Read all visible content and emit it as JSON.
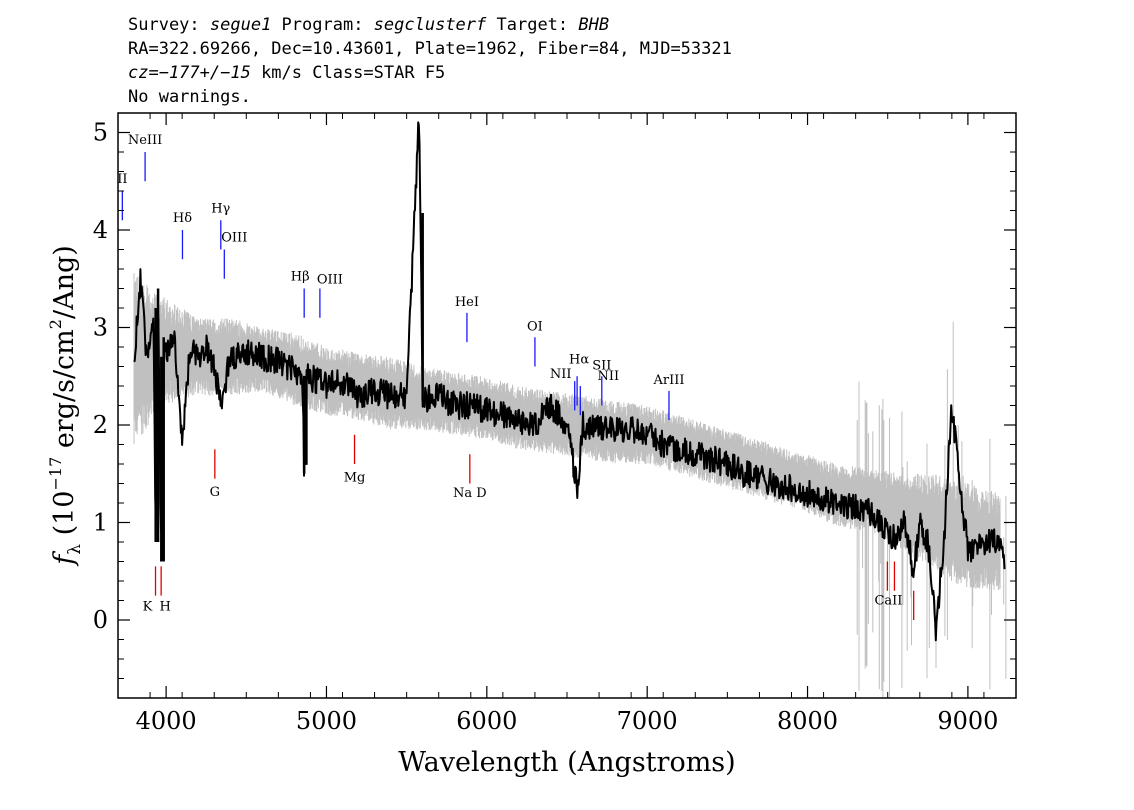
{
  "header": {
    "line1": {
      "p1": "Survey: ",
      "survey": "segue1",
      "p2": " Program: ",
      "program": "segclusterf",
      "p3": " Target: ",
      "target": "BHB"
    },
    "line2": "RA=322.69266, Dec=10.43601, Plate=1962, Fiber=84, MJD=53321",
    "line3": {
      "cz": "cz=−177+/−15",
      "rest": " km/s Class=STAR F5"
    },
    "line4": "No warnings."
  },
  "chart_data": {
    "type": "line",
    "xlabel": "Wavelength (Angstroms)",
    "ylabel_parts": {
      "f": "f",
      "sub": "λ",
      "a": " (10",
      "exp1": "−17",
      "b": " erg/s/cm",
      "exp2": "2",
      "c": "/Ang)"
    },
    "xlim": [
      3700,
      9300
    ],
    "ylim": [
      -0.8,
      5.2
    ],
    "x_ticks": [
      4000,
      5000,
      6000,
      7000,
      8000,
      9000
    ],
    "y_ticks": [
      0,
      1,
      2,
      3,
      4,
      5
    ],
    "grid": false,
    "series": [
      {
        "style": "flux-black",
        "x": [
          3800,
          3840,
          3880,
          3920,
          3935,
          3950,
          3970,
          3985,
          4000,
          4050,
          4101,
          4150,
          4200,
          4250,
          4300,
          4340,
          4400,
          4500,
          4600,
          4700,
          4800,
          4850,
          4861,
          4875,
          4950,
          5000,
          5100,
          5200,
          5300,
          5400,
          5500,
          5577,
          5600,
          5700,
          5800,
          5900,
          6000,
          6100,
          6200,
          6300,
          6400,
          6500,
          6563,
          6600,
          6700,
          6800,
          6900,
          7000,
          7100,
          7200,
          7300,
          7400,
          7500,
          7600,
          7700,
          7800,
          7900,
          8000,
          8100,
          8200,
          8300,
          8400,
          8498,
          8542,
          8600,
          8662,
          8700,
          8750,
          8800,
          8850,
          8900,
          9000,
          9100,
          9200,
          9230
        ],
        "y": [
          2.7,
          3.5,
          2.6,
          3.2,
          0.8,
          3.4,
          0.6,
          2.9,
          2.7,
          2.9,
          1.8,
          2.8,
          2.7,
          2.8,
          2.6,
          2.2,
          2.7,
          2.75,
          2.7,
          2.65,
          2.55,
          2.5,
          1.5,
          2.5,
          2.45,
          2.4,
          2.45,
          2.3,
          2.35,
          2.3,
          2.3,
          5.2,
          2.25,
          2.3,
          2.2,
          2.2,
          2.15,
          2.1,
          2.05,
          2.0,
          2.2,
          2.0,
          1.35,
          2.0,
          1.95,
          1.95,
          1.95,
          1.9,
          1.8,
          1.75,
          1.7,
          1.65,
          1.6,
          1.5,
          1.45,
          1.4,
          1.35,
          1.3,
          1.25,
          1.2,
          1.15,
          1.1,
          0.9,
          0.85,
          1.0,
          0.5,
          1.0,
          0.8,
          -0.1,
          0.8,
          2.2,
          0.7,
          0.8,
          0.8,
          0.5
        ]
      },
      {
        "style": "noise-gray",
        "x": [
          3800,
          3900,
          4000,
          4200,
          4400,
          4600,
          4800,
          5000,
          5200,
          5400,
          5600,
          5800,
          6000,
          6200,
          6400,
          6600,
          6800,
          7000,
          7200,
          7400,
          7600,
          7800,
          8000,
          8200,
          8400,
          8600,
          8800,
          9000,
          9200
        ],
        "y_upper": [
          3.6,
          3.4,
          3.3,
          3.1,
          3.1,
          3.0,
          2.95,
          2.8,
          2.75,
          2.7,
          2.6,
          2.55,
          2.5,
          2.4,
          2.35,
          2.3,
          2.25,
          2.2,
          2.1,
          2.0,
          1.9,
          1.8,
          1.7,
          1.6,
          1.55,
          1.5,
          1.5,
          1.4,
          1.3
        ],
        "y_lower": [
          1.8,
          2.0,
          2.2,
          2.3,
          2.3,
          2.35,
          2.2,
          2.1,
          2.05,
          1.95,
          1.95,
          1.9,
          1.85,
          1.75,
          1.7,
          1.65,
          1.6,
          1.6,
          1.5,
          1.4,
          1.3,
          1.2,
          1.1,
          0.95,
          0.9,
          0.7,
          0.5,
          0.3,
          0.3
        ]
      }
    ],
    "emission_lines": [
      {
        "label": "II",
        "x": 3727,
        "y1": 4.1,
        "y2": 4.4,
        "ly": 4.48,
        "dx": 0
      },
      {
        "label": "NeIII",
        "x": 3869,
        "y1": 4.5,
        "y2": 4.8,
        "ly": 4.88,
        "dx": 0
      },
      {
        "label": "Hδ",
        "x": 4102,
        "y1": 3.7,
        "y2": 4.0,
        "ly": 4.08,
        "dx": 0
      },
      {
        "label": "Hγ",
        "x": 4341,
        "y1": 3.8,
        "y2": 4.1,
        "ly": 4.18,
        "dx": 0
      },
      {
        "label": "OIII",
        "x": 4363,
        "y1": 3.5,
        "y2": 3.8,
        "ly": 3.88,
        "dx": 10
      },
      {
        "label": "Hβ",
        "x": 4861,
        "y1": 3.1,
        "y2": 3.4,
        "ly": 3.48,
        "dx": -4
      },
      {
        "label": "OIII",
        "x": 4959,
        "y1": 3.1,
        "y2": 3.4,
        "ly": 3.45,
        "dx": 10
      },
      {
        "label": "HeI",
        "x": 5876,
        "y1": 2.85,
        "y2": 3.15,
        "ly": 3.22,
        "dx": 0
      },
      {
        "label": "OI",
        "x": 6300,
        "y1": 2.6,
        "y2": 2.9,
        "ly": 2.97,
        "dx": 0
      },
      {
        "label": "NII",
        "x": 6548,
        "y1": 2.15,
        "y2": 2.45,
        "ly": 2.48,
        "dx": -14
      },
      {
        "label": "Hα",
        "x": 6563,
        "y1": 2.2,
        "y2": 2.5,
        "ly": 2.63,
        "dx": 2
      },
      {
        "label": "SII",
        "x": 6717,
        "y1": 2.2,
        "y2": 2.5,
        "ly": 2.57,
        "dx": 0
      },
      {
        "label": "NII",
        "x": 6583,
        "y1": 2.1,
        "y2": 2.4,
        "ly": 2.46,
        "dx": 28
      },
      {
        "label": "ArIII",
        "x": 7136,
        "y1": 2.05,
        "y2": 2.35,
        "ly": 2.42,
        "dx": 0
      }
    ],
    "absorption_lines": [
      {
        "label": "K",
        "x": 3934,
        "y1": 0.25,
        "y2": 0.55,
        "ly": 0.1,
        "dx": -8
      },
      {
        "label": "H",
        "x": 3969,
        "y1": 0.25,
        "y2": 0.55,
        "ly": 0.1,
        "dx": 4
      },
      {
        "label": "G",
        "x": 4304,
        "y1": 1.45,
        "y2": 1.75,
        "ly": 1.27,
        "dx": 0
      },
      {
        "label": "Mg",
        "x": 5175,
        "y1": 1.6,
        "y2": 1.9,
        "ly": 1.42,
        "dx": 0
      },
      {
        "label": "Na  D",
        "x": 5894,
        "y1": 1.4,
        "y2": 1.7,
        "ly": 1.26,
        "dx": 0
      },
      {
        "label": "CaII",
        "x": 8542,
        "y1": 0.3,
        "y2": 0.6,
        "ly": 0.16,
        "dx": -6
      },
      {
        "label": "",
        "x": 8498,
        "y1": 0.3,
        "y2": 0.6
      },
      {
        "label": "",
        "x": 8662,
        "y1": 0.0,
        "y2": 0.3
      }
    ],
    "colors": {
      "flux": "#000000",
      "noise": "#c0c0c0",
      "emission": "#1a1aff",
      "absorption": "#e00000",
      "emission_dark": "#000000"
    }
  }
}
